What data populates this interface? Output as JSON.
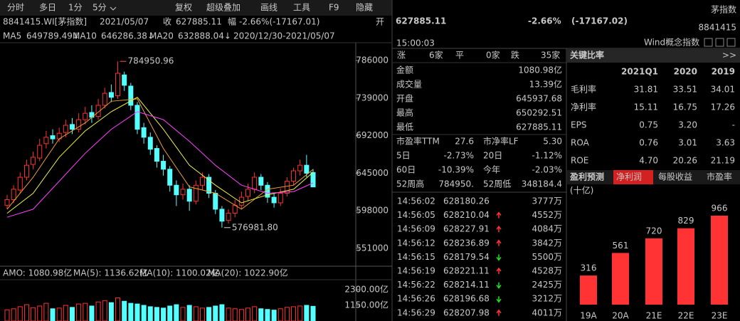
{
  "toolbar": {
    "left": [
      "分时",
      "多日",
      "1分",
      "5分"
    ],
    "right": [
      "复权",
      "超级叠加",
      "画线",
      "工具",
      "F9",
      "隐藏"
    ]
  },
  "info": {
    "code": "8841415.WI[茅指数]",
    "date": "2021/05/07",
    "close_label": "收",
    "close": "627885.11",
    "change_label": "幅",
    "change": "-2.66%(-17167.01)",
    "open_label": "开"
  },
  "ma_legend": [
    {
      "label": "MA5",
      "value": "649789.49↓",
      "color": "#f0a030"
    },
    {
      "label": "MA10",
      "value": "646286.38↓",
      "color": "#f0f040"
    },
    {
      "label": "MA20",
      "value": "632888.04↓",
      "color": "#ff40ff"
    }
  ],
  "overlay_text": "2020/12/30-2021/05/07",
  "kline": {
    "ylim": [
      530500,
      806500
    ],
    "yticks": [
      786000,
      739000,
      692000,
      645000,
      598000,
      551000
    ],
    "up_color": "#ff3232",
    "down_color": "#54ffff",
    "high_label": "784950.96",
    "low_label": "576981.80",
    "open": [
      605000,
      612000,
      624000,
      640000,
      656000,
      664000,
      682000,
      692000,
      688000,
      696000,
      706000,
      700000,
      712000,
      721000,
      716000,
      730000,
      746000,
      742000,
      768000,
      754000,
      730000,
      702000,
      690000,
      676000,
      660000,
      650000,
      630000,
      618000,
      625000,
      610000,
      630000,
      640000,
      620000,
      600000,
      586000,
      595000,
      605000,
      616000,
      625000,
      640000,
      630000,
      615000,
      608000,
      620000,
      635000,
      648000,
      655000,
      645937.68
    ],
    "high": [
      618000,
      630000,
      646000,
      662000,
      672000,
      688000,
      698000,
      700000,
      702000,
      712000,
      714000,
      720000,
      728000,
      730000,
      738000,
      752000,
      756000,
      784950.96,
      772000,
      758000,
      734000,
      708000,
      696000,
      680000,
      668000,
      654000,
      636000,
      632000,
      630000,
      636000,
      646000,
      644000,
      624000,
      604000,
      600000,
      612000,
      622000,
      632000,
      646000,
      644000,
      634000,
      620000,
      626000,
      640000,
      652000,
      662000,
      668000,
      650292.51
    ],
    "low": [
      600000,
      608000,
      620000,
      636000,
      650000,
      660000,
      676000,
      682000,
      684000,
      690000,
      694000,
      696000,
      706000,
      708000,
      712000,
      726000,
      734000,
      738000,
      748000,
      724000,
      694000,
      682000,
      668000,
      652000,
      642000,
      622000,
      604000,
      612000,
      598000,
      606000,
      624000,
      614000,
      594000,
      576981.8,
      582000,
      590000,
      600000,
      610000,
      620000,
      624000,
      608000,
      602000,
      604000,
      616000,
      630000,
      642000,
      640000,
      627885.11
    ],
    "close": [
      612000,
      625000,
      640000,
      655000,
      665000,
      680000,
      690000,
      688000,
      695000,
      705000,
      700000,
      712000,
      720000,
      715000,
      730000,
      745000,
      740000,
      770000,
      755000,
      730000,
      700000,
      690000,
      675000,
      660000,
      650000,
      630000,
      618000,
      625000,
      610000,
      630000,
      640000,
      620000,
      600000,
      585000,
      595000,
      605000,
      615000,
      625000,
      640000,
      630000,
      615000,
      608000,
      620000,
      635000,
      648000,
      655000,
      645052,
      627885.11
    ],
    "ma": [
      {
        "name": "MA5",
        "color": "#f0a030",
        "x": [
          0,
          4,
          8,
          12,
          16,
          20,
          24,
          28,
          32,
          36,
          40,
          44,
          47
        ],
        "values": [
          600000,
          640000,
          688000,
          708000,
          735000,
          738000,
          676000,
          628000,
          620000,
          600000,
          625000,
          630000,
          649789.49
        ]
      },
      {
        "name": "MA10",
        "color": "#f0f040",
        "x": [
          0,
          4,
          8,
          12,
          16,
          20,
          24,
          28,
          32,
          36,
          40,
          44,
          47
        ],
        "values": [
          595000,
          620000,
          665000,
          698000,
          722000,
          740000,
          700000,
          655000,
          630000,
          608000,
          618000,
          625000,
          646286.38
        ]
      },
      {
        "name": "MA20",
        "color": "#ff40ff",
        "x": [
          0,
          4,
          8,
          12,
          16,
          20,
          24,
          28,
          32,
          36,
          40,
          44,
          47
        ],
        "values": [
          590000,
          600000,
          635000,
          670000,
          700000,
          722000,
          712000,
          685000,
          655000,
          630000,
          620000,
          622000,
          632888.04
        ]
      }
    ]
  },
  "amo": {
    "legend": [
      {
        "text": "AMO: 1080.98亿",
        "color": "#ffffff"
      },
      {
        "text": "MA(5): 1136.62亿",
        "color": "#ffffff"
      },
      {
        "text": "MA(10): 1100.02亿",
        "color": "#f0f040"
      },
      {
        "text": "MA(20): 1022.90亿",
        "color": "#ff40ff"
      }
    ],
    "ylim": [
      0,
      2875
    ],
    "yticks": [
      {
        "value": 2300,
        "label": "2300.00亿"
      },
      {
        "value": 1150,
        "label": "1150.00亿"
      }
    ],
    "values": [
      820,
      900,
      1050,
      1200,
      980,
      1100,
      1300,
      900,
      950,
      1150,
      1000,
      1250,
      1300,
      1100,
      1400,
      1500,
      1350,
      1700,
      1450,
      1300,
      1250,
      1150,
      1050,
      1000,
      950,
      1100,
      1200,
      1000,
      1150,
      1050,
      950,
      1000,
      1100,
      1200,
      950,
      900,
      850,
      950,
      1050,
      900,
      850,
      800,
      900,
      1000,
      1050,
      1100,
      1150,
      1080.98
    ]
  },
  "quote": {
    "price": "627885.11",
    "change_pct": "-2.66%",
    "change": "(-17167.02)",
    "name": "茅指数",
    "code": "8841415",
    "time": "15:00:03",
    "category": "Wind概念指数"
  },
  "breadth": [
    "涨",
    "6家",
    "平",
    "0家",
    "跌",
    "35家"
  ],
  "stats": [
    [
      "金额",
      "1080.98亿"
    ],
    [
      "成交量",
      "13.39亿"
    ],
    [
      "开盘",
      "645937.68"
    ],
    [
      "最高",
      "650292.51"
    ],
    [
      "最低",
      "627885.11"
    ]
  ],
  "ratios": [
    [
      "市盈率TTM",
      "27.6",
      "市净率LF",
      "5.30"
    ],
    [
      "5日",
      "-2.73%",
      "20日",
      "-1.12%"
    ],
    [
      "60日",
      "-10.39%",
      "今年",
      "-2.03%"
    ],
    [
      "52周高",
      "784950.",
      "52周低",
      "348184.4"
    ]
  ],
  "ticks": [
    [
      "14:56:02",
      "628180.26",
      "3777万"
    ],
    [
      "14:56:05",
      "628210.04",
      "4552万"
    ],
    [
      "14:56:09",
      "628227.91",
      "4084万"
    ],
    [
      "14:56:12",
      "628236.89",
      "3842万"
    ],
    [
      "14:56:15",
      "628179.54",
      "5500万"
    ],
    [
      "14:56:19",
      "628221.11",
      "4528万"
    ],
    [
      "14:56:22",
      "628214.11",
      "2425万"
    ],
    [
      "14:56:26",
      "628196.68",
      "3212万"
    ],
    [
      "14:56:29",
      "628207.98",
      "4011万"
    ]
  ],
  "key_ratios": {
    "title": "关键比率",
    "more": ">>",
    "header": [
      "2021Q1",
      "2020",
      "2019"
    ],
    "rows": [
      [
        "毛利率",
        "31.81",
        "33.51",
        "34.01"
      ],
      [
        "净利率",
        "15.11",
        "16.75",
        "17.26"
      ],
      [
        "EPS",
        "0.75",
        "3.20",
        "-"
      ],
      [
        "ROA",
        "0.76",
        "3.01",
        "3.63"
      ],
      [
        "ROE",
        "4.70",
        "20.26",
        "21.19"
      ]
    ]
  },
  "forecast": {
    "tabs": [
      "盈利预测",
      "净利润",
      "每股收益",
      "市盈率"
    ],
    "unit": "(十亿)",
    "chart_data": {
      "type": "bar",
      "categories": [
        "19A",
        "20A",
        "21E",
        "22E",
        "23E"
      ],
      "values": [
        316,
        561,
        720,
        829,
        966
      ],
      "color": "#ff3333"
    }
  }
}
